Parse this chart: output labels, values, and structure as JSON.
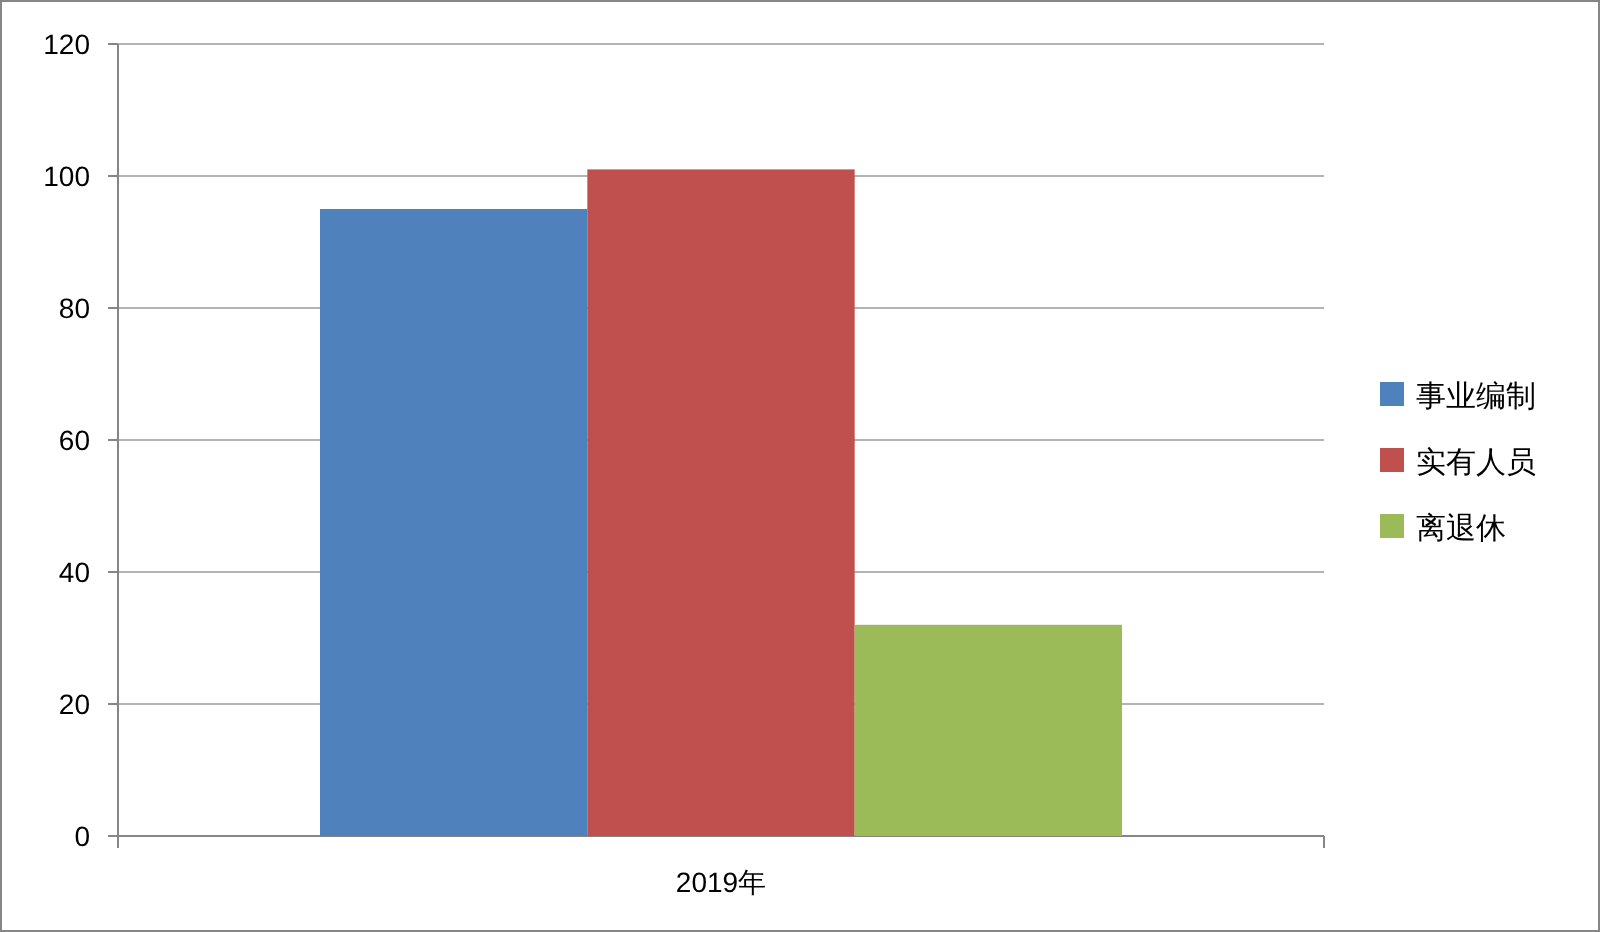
{
  "chart_data": {
    "type": "bar",
    "categories": [
      "2019年"
    ],
    "series": [
      {
        "name": "事业编制",
        "color": "#4f81bd",
        "values": [
          95
        ]
      },
      {
        "name": "实有人员",
        "color": "#c0504d",
        "values": [
          101
        ]
      },
      {
        "name": "离退休",
        "color": "#9bbb59",
        "values": [
          32
        ]
      }
    ],
    "ylim": [
      0,
      120
    ],
    "yticks": [
      0,
      20,
      40,
      60,
      80,
      100,
      120
    ],
    "grid": "y",
    "legend": "right"
  }
}
